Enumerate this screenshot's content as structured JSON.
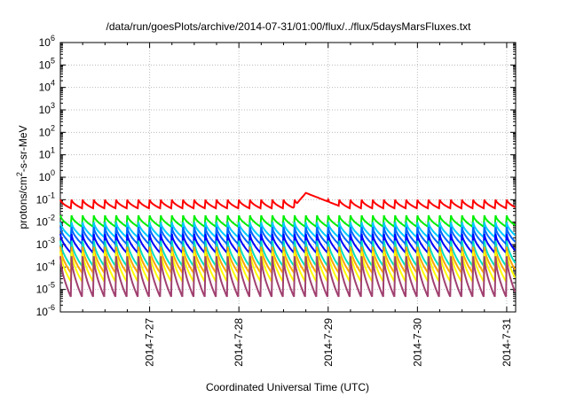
{
  "chart_data": {
    "type": "line",
    "title": "/data/run/goesPlots/archive/2014-07-31/01:00/flux/../flux/5daysMarsFluxes.txt",
    "xlabel": "Coordinated Universal Time (UTC)",
    "ylabel_prefix": "protons/cm",
    "ylabel_sup": "2",
    "ylabel_suffix": "-s-sr-MeV",
    "y_scale": "log",
    "y_tick_exponents": [
      -6,
      -5,
      -4,
      -3,
      -2,
      -1,
      0,
      1,
      2,
      3,
      4,
      5,
      6
    ],
    "y_tick_base": "10",
    "x_start_day": 26.0,
    "x_end_day": 31.1,
    "x_ticks": [
      {
        "label": "2014-7-27",
        "day": 27
      },
      {
        "label": "2014-7-28",
        "day": 28
      },
      {
        "label": "2014-7-29",
        "day": 29
      },
      {
        "label": "2014-7-30",
        "day": 30
      },
      {
        "label": "2014-7-31",
        "day": 31
      }
    ],
    "grid": true,
    "legend": "none",
    "sawtooth_period_days": 0.125,
    "series": [
      {
        "color": "#ff0000",
        "peak": 0.1,
        "low": 0.04,
        "event": {
          "start_day": 28.6,
          "end_day": 29.2,
          "peak": 0.2
        }
      },
      {
        "color": "#00ee00",
        "peak": 0.02,
        "low": 0.006
      },
      {
        "color": "#00ccff",
        "peak": 0.01,
        "low": 0.002
      },
      {
        "color": "#0066ff",
        "peak": 0.006,
        "low": 0.001
      },
      {
        "color": "#0000ff",
        "peak": 0.003,
        "low": 0.0004
      },
      {
        "color": "#00e0c0",
        "peak": 0.0015,
        "low": 0.0001
      },
      {
        "color": "#ffa500",
        "peak": 0.0008,
        "low": 5e-05
      },
      {
        "color": "#ffff00",
        "peak": 0.0005,
        "low": 2e-05
      },
      {
        "color": "#a04070",
        "peak": 0.0003,
        "low": 4e-06
      }
    ]
  }
}
